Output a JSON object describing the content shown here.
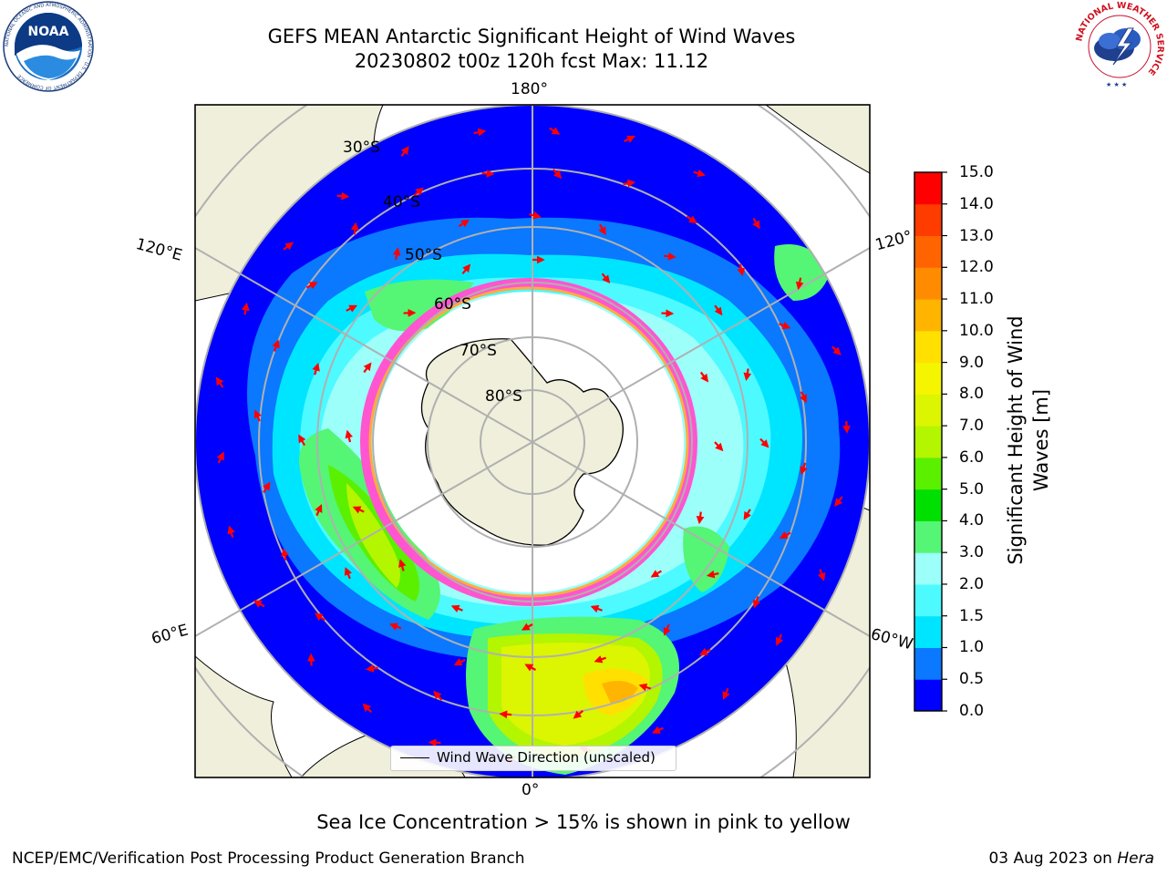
{
  "title": {
    "line1": "GEFS MEAN Antarctic Significant Height of Wind Waves",
    "line2": "20230802 t00z 120h fcst   Max: 11.12"
  },
  "chart_data": {
    "type": "heatmap",
    "projection": "south polar stereographic",
    "longitude_labels": [
      "180°",
      "120°E",
      "120°",
      "60°E",
      "60°W",
      "0°"
    ],
    "latitude_labels": [
      "30°S",
      "40°S",
      "50°S",
      "60°S",
      "70°S",
      "80°S"
    ],
    "max_value": 11.12,
    "colorbar": {
      "label": "Significant Height of Wind Waves [m]",
      "ticks": [
        "0.0",
        "0.5",
        "1.0",
        "1.5",
        "2.0",
        "3.0",
        "4.0",
        "5.0",
        "6.0",
        "7.0",
        "8.0",
        "9.0",
        "10.0",
        "11.0",
        "12.0",
        "13.0",
        "14.0",
        "15.0"
      ],
      "colors": [
        "#0000ff",
        "#0a78ff",
        "#00e5ff",
        "#4dfaff",
        "#9cfffa",
        "#55f575",
        "#00e000",
        "#5af000",
        "#b4f500",
        "#dcf500",
        "#f5f500",
        "#ffe000",
        "#ffb400",
        "#ff8c00",
        "#ff6400",
        "#ff3c00",
        "#ff0000"
      ]
    },
    "legend": {
      "entries": [
        "Wind Wave Direction (unscaled)"
      ],
      "placement": "lower-center"
    },
    "grid": true
  },
  "colorbar_title_line1": "Significant Height of Wind",
  "colorbar_title_line2": "Waves [m]",
  "footer_note": "Sea Ice Concentration > 15% is shown in pink to yellow",
  "credit_left": "NCEP/EMC/Verification Post Processing Product Generation Branch",
  "credit_right_date": "03 Aug 2023 on ",
  "credit_right_machine": "Hera",
  "logos": {
    "noaa_text": "NOAA",
    "noaa_ring": "NATIONAL OCEANIC AND ATMOSPHERIC ADMINISTRATION · U.S. DEPARTMENT OF COMMERCE",
    "nws_ring": "NATIONAL WEATHER SERVICE"
  }
}
